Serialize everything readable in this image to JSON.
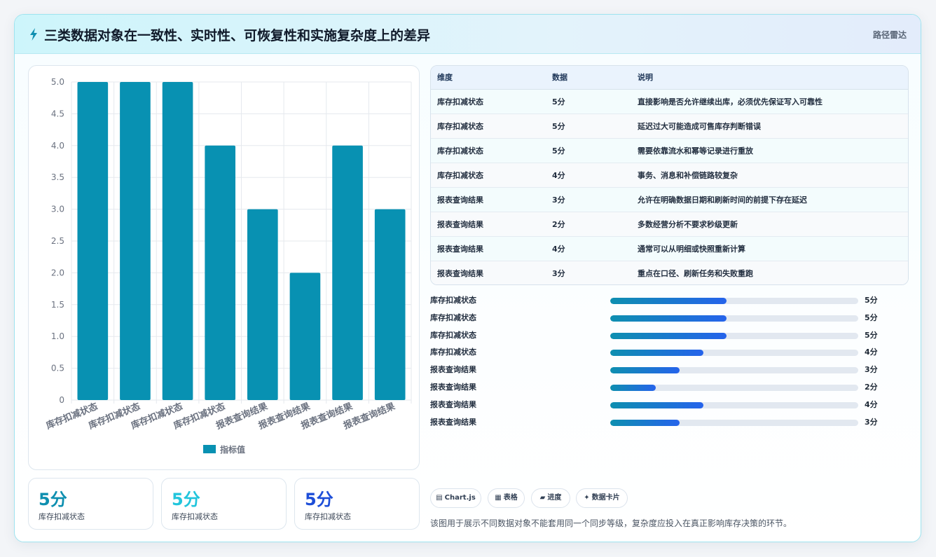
{
  "header": {
    "title": "三类数据对象在一致性、实时性、可恢复性和实施复杂度上的差异",
    "tag": "路径雷达",
    "icon": "lightning-icon"
  },
  "chart_data": {
    "type": "bar",
    "categories": [
      "库存扣减状态",
      "库存扣减状态",
      "库存扣减状态",
      "库存扣减状态",
      "报表查询结果",
      "报表查询结果",
      "报表查询结果",
      "报表查询结果"
    ],
    "series": [
      {
        "name": "指标值",
        "values": [
          5,
          5,
          5,
          4,
          3,
          2,
          4,
          3
        ]
      }
    ],
    "ylim": [
      0,
      5
    ],
    "yticks": [
      "0",
      "0.5",
      "1.0",
      "1.5",
      "2.0",
      "2.5",
      "3.0",
      "3.5",
      "4.0",
      "4.5",
      "5.0"
    ],
    "grid": true,
    "legend": "bottom",
    "color": "#0891b2"
  },
  "kpis": [
    {
      "value": "5分",
      "label": "库存扣减状态",
      "color": "#0e8fb0"
    },
    {
      "value": "5分",
      "label": "库存扣减状态",
      "color": "#22c5dc"
    },
    {
      "value": "5分",
      "label": "库存扣减状态",
      "color": "#1d4ed8"
    }
  ],
  "table": {
    "headers": [
      "维度",
      "数据",
      "说明"
    ],
    "rows": [
      [
        "库存扣减状态",
        "5分",
        "直接影响是否允许继续出库，必须优先保证写入可靠性"
      ],
      [
        "库存扣减状态",
        "5分",
        "延迟过大可能造成可售库存判断错误"
      ],
      [
        "库存扣减状态",
        "5分",
        "需要依靠流水和幂等记录进行重放"
      ],
      [
        "库存扣减状态",
        "4分",
        "事务、消息和补偿链路较复杂"
      ],
      [
        "报表查询结果",
        "3分",
        "允许在明确数据日期和刷新时间的前提下存在延迟"
      ],
      [
        "报表查询结果",
        "2分",
        "多数经营分析不要求秒级更新"
      ],
      [
        "报表查询结果",
        "4分",
        "通常可以从明细或快照重新计算"
      ],
      [
        "报表查询结果",
        "3分",
        "重点在口径、刷新任务和失败重跑"
      ]
    ]
  },
  "progress": [
    {
      "label": "库存扣减状态",
      "value": "5分",
      "fraction": 0.47
    },
    {
      "label": "库存扣减状态",
      "value": "5分",
      "fraction": 0.47
    },
    {
      "label": "库存扣减状态",
      "value": "5分",
      "fraction": 0.47
    },
    {
      "label": "库存扣减状态",
      "value": "4分",
      "fraction": 0.375
    },
    {
      "label": "报表查询结果",
      "value": "3分",
      "fraction": 0.28
    },
    {
      "label": "报表查询结果",
      "value": "2分",
      "fraction": 0.185
    },
    {
      "label": "报表查询结果",
      "value": "4分",
      "fraction": 0.375
    },
    {
      "label": "报表查询结果",
      "value": "3分",
      "fraction": 0.28
    }
  ],
  "chips": [
    {
      "icon": "▤",
      "label": "Chart.js"
    },
    {
      "icon": "▦",
      "label": "表格"
    },
    {
      "icon": "▰",
      "label": "进度"
    },
    {
      "icon": "✦",
      "label": "数据卡片"
    }
  ],
  "footnote": "该图用于展示不同数据对象不能套用同一个同步等级，复杂度应投入在真正影响库存决策的环节。"
}
